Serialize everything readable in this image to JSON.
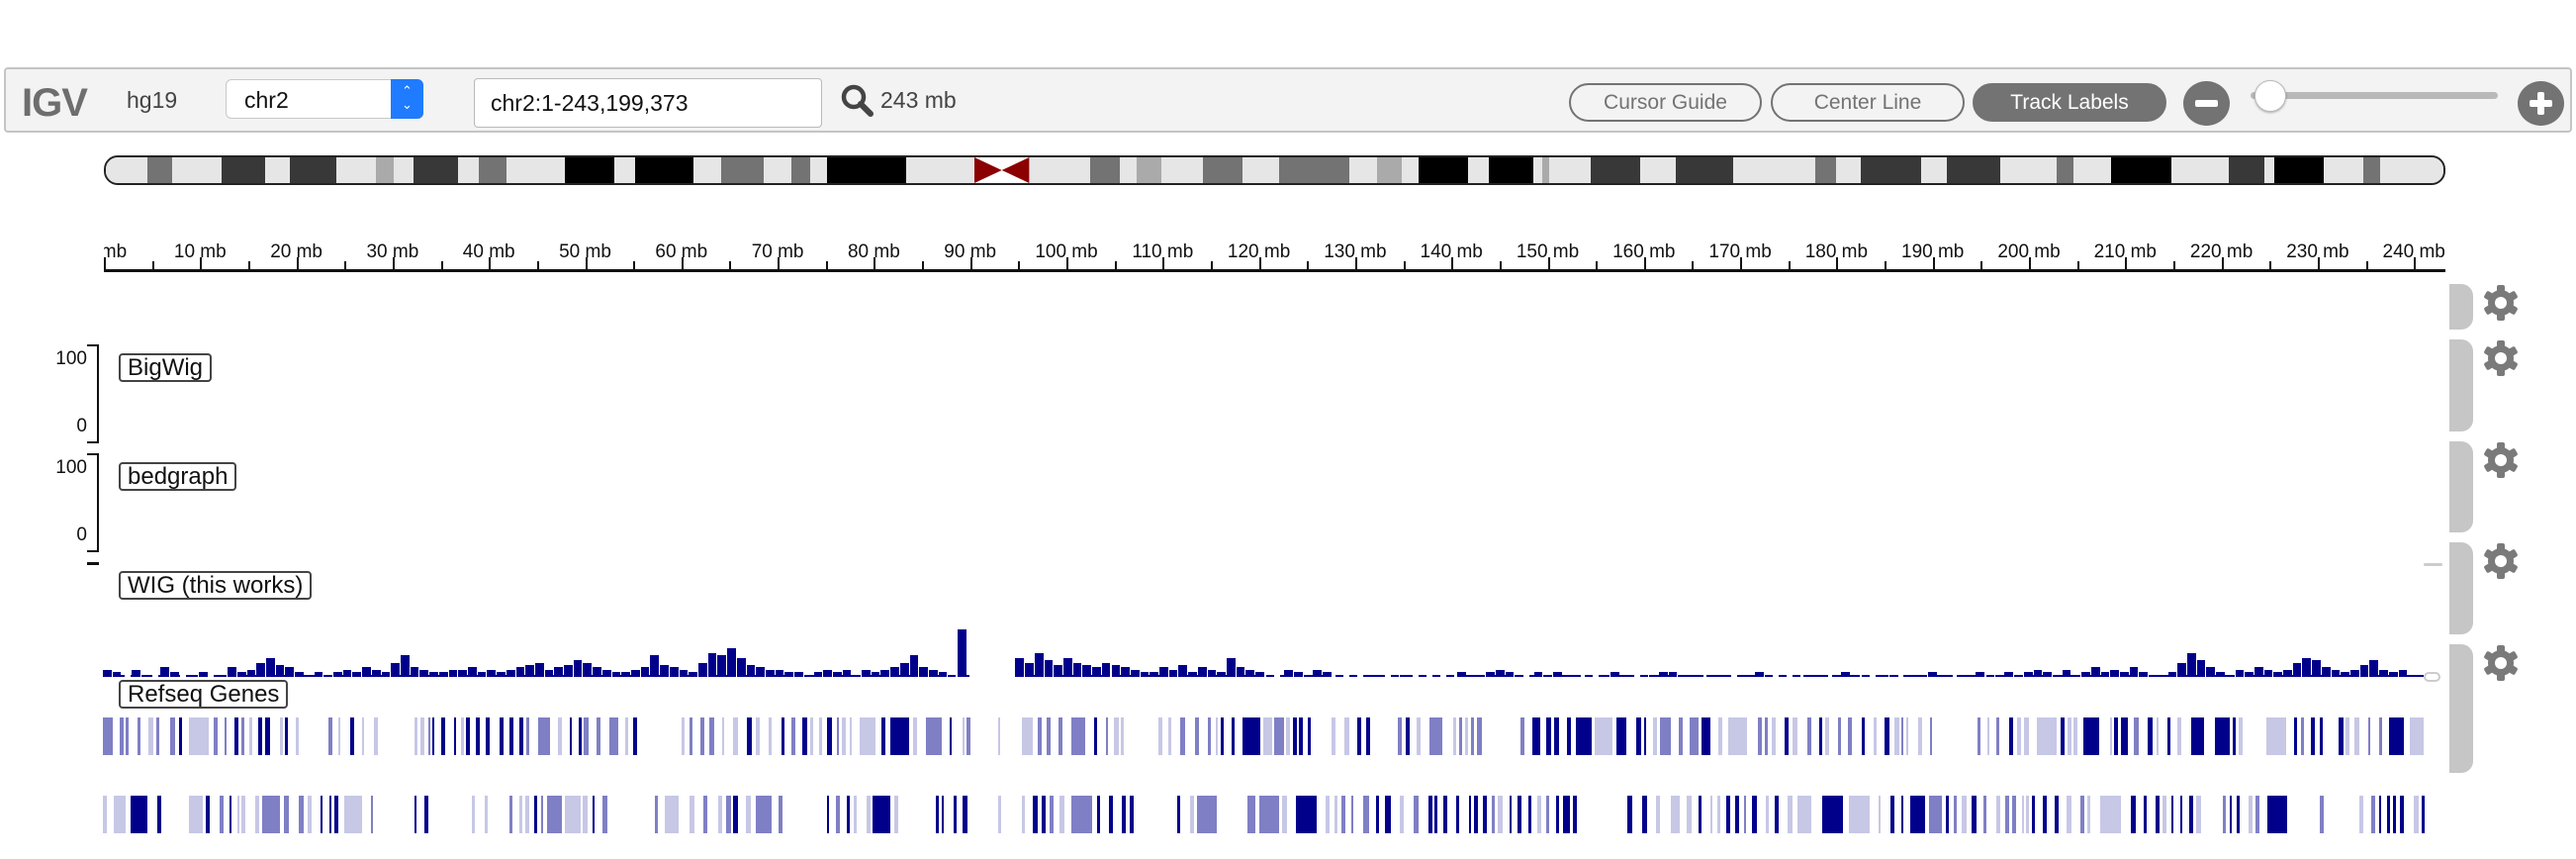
{
  "toolbar": {
    "logo": "IGV",
    "genome": "hg19",
    "chromosome": "chr2",
    "locus": "chr2:1-243,199,373",
    "zoom_width": "243 mb",
    "buttons": {
      "cursor_guide": "Cursor Guide",
      "center_line": "Center Line",
      "track_labels": "Track Labels"
    },
    "icons": {
      "search": "search-icon",
      "zoom_out": "minus-circle-icon",
      "zoom_in": "plus-circle-icon"
    },
    "colors": {
      "select_accent": "#1f7bff",
      "button_gray": "#737373"
    }
  },
  "ideogram": {
    "chromosome": "chr2",
    "length_mb": 243.2,
    "centromere_mb": [
      90.4,
      96.1
    ],
    "centromere_color": "#8b0000",
    "bands": [
      [
        0,
        4.3,
        "#e6e6e6"
      ],
      [
        4.3,
        6.9,
        "#737373"
      ],
      [
        6.9,
        12.0,
        "#e6e6e6"
      ],
      [
        12.0,
        16.6,
        "#383838"
      ],
      [
        16.6,
        19.1,
        "#e6e6e6"
      ],
      [
        19.1,
        24.0,
        "#383838"
      ],
      [
        24.0,
        28.1,
        "#e6e6e6"
      ],
      [
        28.1,
        30.0,
        "#aaaaaa"
      ],
      [
        30.0,
        32.0,
        "#e6e6e6"
      ],
      [
        32.0,
        36.6,
        "#383838"
      ],
      [
        36.6,
        38.8,
        "#e6e6e6"
      ],
      [
        38.8,
        41.7,
        "#737373"
      ],
      [
        41.7,
        47.8,
        "#e6e6e6"
      ],
      [
        47.8,
        52.9,
        "#000000"
      ],
      [
        52.9,
        55.1,
        "#e6e6e6"
      ],
      [
        55.1,
        61.1,
        "#000000"
      ],
      [
        61.1,
        64.0,
        "#e6e6e6"
      ],
      [
        64.0,
        68.4,
        "#737373"
      ],
      [
        68.4,
        71.3,
        "#e6e6e6"
      ],
      [
        71.3,
        73.3,
        "#737373"
      ],
      [
        73.3,
        75.0,
        "#e6e6e6"
      ],
      [
        75.0,
        83.3,
        "#000000"
      ],
      [
        83.3,
        90.4,
        "#e6e6e6"
      ],
      [
        96.1,
        102.4,
        "#e6e6e6"
      ],
      [
        102.4,
        105.5,
        "#737373"
      ],
      [
        105.5,
        107.2,
        "#e6e6e6"
      ],
      [
        107.2,
        109.8,
        "#aaaaaa"
      ],
      [
        109.8,
        114.1,
        "#e6e6e6"
      ],
      [
        114.1,
        118.3,
        "#737373"
      ],
      [
        118.3,
        122.1,
        "#e6e6e6"
      ],
      [
        122.1,
        129.4,
        "#737373"
      ],
      [
        129.4,
        132.3,
        "#e6e6e6"
      ],
      [
        132.3,
        134.8,
        "#aaaaaa"
      ],
      [
        134.8,
        136.6,
        "#e6e6e6"
      ],
      [
        136.6,
        141.7,
        "#000000"
      ],
      [
        141.7,
        143.9,
        "#e6e6e6"
      ],
      [
        143.9,
        148.5,
        "#000000"
      ],
      [
        148.5,
        149.4,
        "#e6e6e6"
      ],
      [
        149.4,
        150.2,
        "#aaaaaa"
      ],
      [
        150.2,
        154.5,
        "#e6e6e6"
      ],
      [
        154.5,
        159.6,
        "#383838"
      ],
      [
        159.6,
        163.3,
        "#e6e6e6"
      ],
      [
        163.3,
        169.3,
        "#383838"
      ],
      [
        169.3,
        177.8,
        "#e6e6e6"
      ],
      [
        177.8,
        180.0,
        "#737373"
      ],
      [
        180.0,
        182.6,
        "#e6e6e6"
      ],
      [
        182.6,
        188.9,
        "#383838"
      ],
      [
        188.9,
        191.5,
        "#e6e6e6"
      ],
      [
        191.5,
        197.1,
        "#383838"
      ],
      [
        197.1,
        203.0,
        "#e6e6e6"
      ],
      [
        203.0,
        204.7,
        "#737373"
      ],
      [
        204.7,
        208.6,
        "#e6e6e6"
      ],
      [
        208.6,
        214.9,
        "#000000"
      ],
      [
        214.9,
        220.9,
        "#e6e6e6"
      ],
      [
        220.9,
        224.6,
        "#383838"
      ],
      [
        224.6,
        225.6,
        "#e6e6e6"
      ],
      [
        225.6,
        230.7,
        "#000000"
      ],
      [
        230.7,
        234.9,
        "#e6e6e6"
      ],
      [
        234.9,
        236.6,
        "#737373"
      ],
      [
        236.6,
        243.2,
        "#e6e6e6"
      ]
    ]
  },
  "ruler": {
    "labels": [
      "mb",
      "10 mb",
      "20 mb",
      "30 mb",
      "40 mb",
      "50 mb",
      "60 mb",
      "70 mb",
      "80 mb",
      "90 mb",
      "100 mb",
      "110 mb",
      "120 mb",
      "130 mb",
      "140 mb",
      "150 mb",
      "160 mb",
      "170 mb",
      "180 mb",
      "190 mb",
      "200 mb",
      "210 mb",
      "220 mb",
      "230 mb",
      "240 mb"
    ],
    "major_step_mb": 10,
    "minor_step_mb": 5
  },
  "tracks": [
    {
      "name": "BigWig",
      "type": "wig",
      "data_range": {
        "max": "100",
        "min": "0"
      }
    },
    {
      "name": "bedgraph",
      "type": "wig",
      "data_range": {
        "max": "100",
        "min": "0"
      }
    },
    {
      "name": "WIG (this works)",
      "type": "wig",
      "color": "#00008b"
    },
    {
      "name": "Refseq Genes",
      "type": "annotation",
      "color": "#00008b"
    }
  ],
  "wig_values": [
    3,
    2,
    0,
    3,
    1,
    0,
    4,
    2,
    0,
    1,
    2,
    0,
    1,
    4,
    2,
    3,
    6,
    8,
    5,
    4,
    2,
    1,
    2,
    1,
    2,
    3,
    2,
    4,
    3,
    2,
    6,
    9,
    4,
    3,
    2,
    2,
    3,
    3,
    4,
    2,
    3,
    2,
    3,
    4,
    5,
    6,
    3,
    4,
    5,
    7,
    6,
    4,
    3,
    2,
    2,
    3,
    4,
    9,
    5,
    4,
    3,
    2,
    6,
    10,
    9,
    12,
    8,
    5,
    4,
    3,
    3,
    2,
    2,
    1,
    2,
    3,
    2,
    3,
    1,
    3,
    2,
    3,
    4,
    6,
    9,
    4,
    3,
    2,
    0,
    20,
    0,
    0,
    0,
    0,
    0,
    8,
    6,
    10,
    7,
    5,
    8,
    6,
    5,
    4,
    6,
    5,
    4,
    3,
    2,
    2,
    4,
    3,
    5,
    2,
    4,
    3,
    2,
    8,
    4,
    3,
    2,
    0,
    0,
    3,
    2,
    1,
    3,
    2,
    0,
    0,
    0,
    0,
    1,
    0,
    0,
    1,
    0,
    0,
    0,
    0,
    0,
    2,
    1,
    1,
    2,
    3,
    2,
    1,
    0,
    2,
    1,
    2,
    1,
    1,
    0,
    0,
    1,
    2,
    1,
    0,
    0,
    1,
    2,
    2,
    1,
    1,
    0,
    1,
    1,
    0,
    0,
    1,
    2,
    1,
    0,
    0,
    0,
    1,
    1,
    0,
    1,
    2,
    1,
    0,
    0,
    1,
    1,
    0,
    1,
    1,
    2,
    1,
    0,
    1,
    1,
    2,
    0,
    1,
    2,
    1,
    2,
    3,
    2,
    1,
    3,
    1,
    2,
    4,
    2,
    3,
    2,
    4,
    2,
    1,
    1,
    2,
    6,
    10,
    7,
    4,
    2,
    1,
    3,
    2,
    4,
    3,
    2,
    3,
    6,
    8,
    7,
    4,
    3,
    2,
    3,
    5,
    7,
    3,
    2,
    3,
    1
  ],
  "refseq_rows": [
    {
      "row": 1,
      "segments": "dense"
    },
    {
      "row": 2,
      "segments": "dense"
    }
  ],
  "side_controls": {
    "gear_icon": "gear-icon",
    "count": 5
  }
}
